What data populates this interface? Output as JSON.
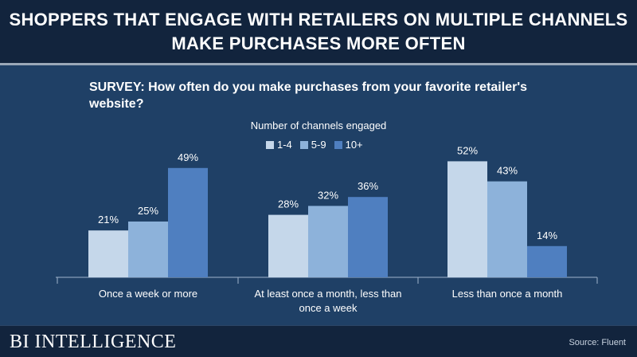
{
  "header": {
    "title_line1": "SHOPPERS THAT ENGAGE WITH RETAILERS ON MULTIPLE CHANNELS",
    "title_line2": "MAKE PURCHASES MORE OFTEN"
  },
  "footer": {
    "brand": "BI INTELLIGENCE",
    "source": "Source: Fluent"
  },
  "chart_data": {
    "type": "bar",
    "title": "SURVEY: How often do you make purchases from your favorite retailer's website?",
    "legend_title": "Number of channels engaged",
    "legend_placement": "top-center",
    "categories": [
      [
        "Once a week or more"
      ],
      [
        "At least once a month, less than",
        "once a week"
      ],
      [
        "Less than once a month"
      ]
    ],
    "series": [
      {
        "name": "1-4",
        "color": "#c5d7ea",
        "values": [
          21,
          28,
          52
        ],
        "labels": [
          "21%",
          "28%",
          "52%"
        ]
      },
      {
        "name": "5-9",
        "color": "#8db2da",
        "values": [
          25,
          32,
          43
        ],
        "labels": [
          "25%",
          "32%",
          "43%"
        ]
      },
      {
        "name": "10+",
        "color": "#4f7fc0",
        "values": [
          49,
          36,
          14
        ],
        "labels": [
          "49%",
          "36%",
          "14%"
        ]
      }
    ],
    "ylim": [
      0,
      55
    ],
    "grid": false,
    "xlabel": "",
    "ylabel": ""
  }
}
